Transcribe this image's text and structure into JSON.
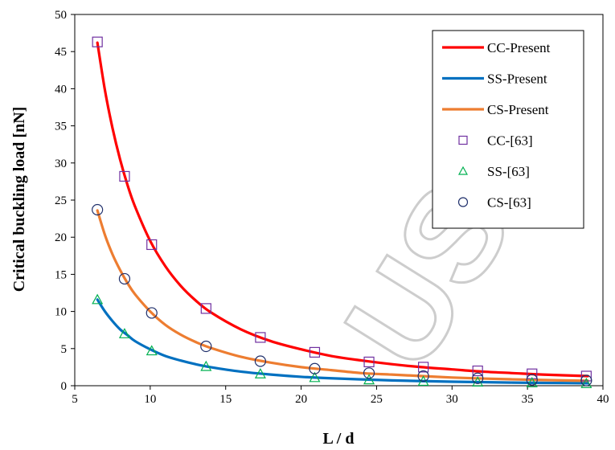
{
  "watermark": "USC",
  "chart_data": {
    "type": "line",
    "title": "",
    "xlabel": "L / d",
    "ylabel": "Critical buckling load [nN]",
    "xlim": [
      5,
      40
    ],
    "ylim": [
      0,
      50
    ],
    "xticks": [
      5,
      10,
      15,
      20,
      25,
      30,
      35,
      40
    ],
    "yticks": [
      0,
      5,
      10,
      15,
      20,
      25,
      30,
      35,
      40,
      45,
      50
    ],
    "grid": false,
    "legend_position": "top-right",
    "series": [
      {
        "name": "CC-Present",
        "style": "line",
        "color": "#ff0000",
        "x": [
          6.5,
          7,
          7.5,
          8,
          8.5,
          9,
          10,
          11,
          12,
          13,
          14,
          16,
          18,
          20,
          22,
          24,
          26,
          28,
          30,
          32,
          34,
          36,
          39
        ],
        "y": [
          46.2,
          39.8,
          34.7,
          30.5,
          27.0,
          24.1,
          19.5,
          16.1,
          13.5,
          11.5,
          9.9,
          7.6,
          6.0,
          4.9,
          4.0,
          3.4,
          2.9,
          2.5,
          2.2,
          1.9,
          1.7,
          1.5,
          1.3
        ]
      },
      {
        "name": "SS-Present",
        "style": "line",
        "color": "#0070c0",
        "x": [
          6.5,
          7,
          7.5,
          8,
          8.5,
          9,
          10,
          11,
          12,
          13,
          14,
          16,
          18,
          20,
          22,
          24,
          26,
          28,
          30,
          32,
          34,
          36,
          39
        ],
        "y": [
          11.6,
          10.0,
          8.7,
          7.6,
          6.8,
          6.0,
          4.9,
          4.0,
          3.4,
          2.9,
          2.5,
          1.9,
          1.5,
          1.2,
          1.0,
          0.85,
          0.72,
          0.62,
          0.54,
          0.48,
          0.42,
          0.38,
          0.33
        ]
      },
      {
        "name": "CS-Present",
        "style": "line",
        "color": "#ed7d31",
        "x": [
          6.5,
          7,
          7.5,
          8,
          8.5,
          9,
          10,
          11,
          12,
          13,
          14,
          16,
          18,
          20,
          22,
          24,
          26,
          28,
          30,
          32,
          34,
          36,
          39
        ],
        "y": [
          23.6,
          20.3,
          17.7,
          15.6,
          13.8,
          12.3,
          10.0,
          8.2,
          6.9,
          5.9,
          5.1,
          3.9,
          3.1,
          2.5,
          2.1,
          1.7,
          1.5,
          1.3,
          1.1,
          0.97,
          0.86,
          0.77,
          0.66
        ]
      },
      {
        "name": "CC-[63]",
        "style": "square",
        "color": "#7030a0",
        "x": [
          6.5,
          8.3,
          10.1,
          13.7,
          17.3,
          20.9,
          24.5,
          28.1,
          31.7,
          35.3,
          38.9
        ],
        "y": [
          46.3,
          28.2,
          19.0,
          10.4,
          6.5,
          4.5,
          3.2,
          2.5,
          2.0,
          1.6,
          1.3
        ]
      },
      {
        "name": "SS-[63]",
        "style": "triangle",
        "color": "#00b050",
        "x": [
          6.5,
          8.3,
          10.1,
          13.7,
          17.3,
          20.9,
          24.5,
          28.1,
          31.7,
          35.3,
          38.9
        ],
        "y": [
          11.6,
          7.0,
          4.7,
          2.6,
          1.6,
          1.1,
          0.8,
          0.6,
          0.5,
          0.4,
          0.3
        ]
      },
      {
        "name": "CS-[63]",
        "style": "circle",
        "color": "#1f2f6b",
        "x": [
          6.5,
          8.3,
          10.1,
          13.7,
          17.3,
          20.9,
          24.5,
          28.1,
          31.7,
          35.3,
          38.9
        ],
        "y": [
          23.7,
          14.4,
          9.8,
          5.3,
          3.3,
          2.3,
          1.7,
          1.3,
          1.0,
          0.8,
          0.7
        ]
      }
    ]
  }
}
